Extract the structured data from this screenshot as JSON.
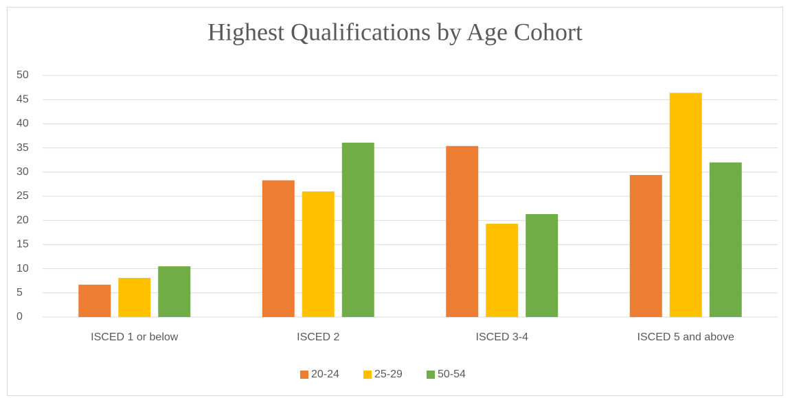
{
  "chart_data": {
    "type": "bar",
    "title": "Highest Qualifications by Age Cohort",
    "categories": [
      "ISCED 1 or below",
      "ISCED 2",
      "ISCED 3-4",
      "ISCED 5 and above"
    ],
    "series": [
      {
        "name": "20-24",
        "color": "#ed7d31",
        "values": [
          6.7,
          28.3,
          35.4,
          29.4
        ]
      },
      {
        "name": "25-29",
        "color": "#ffc000",
        "values": [
          8.1,
          26.0,
          19.3,
          46.4
        ]
      },
      {
        "name": "50-54",
        "color": "#70ad47",
        "values": [
          10.5,
          36.1,
          21.3,
          32.0
        ]
      }
    ],
    "ylim": [
      0,
      50
    ],
    "yticks": [
      0,
      5,
      10,
      15,
      20,
      25,
      30,
      35,
      40,
      45,
      50
    ],
    "grid": true,
    "legend": "bottom"
  }
}
